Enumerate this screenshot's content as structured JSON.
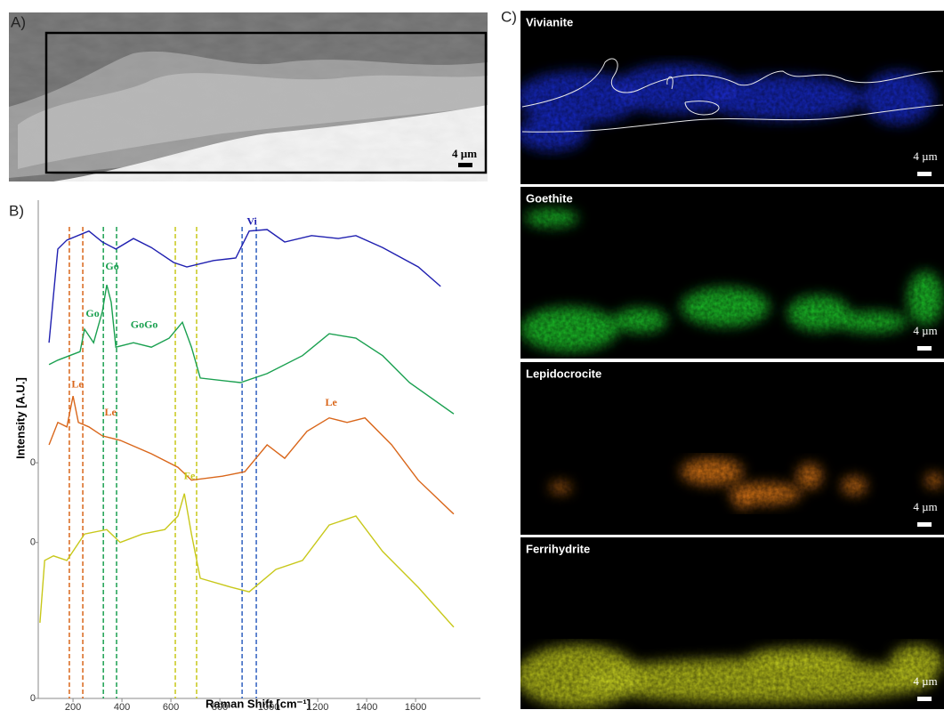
{
  "panel_a": {
    "label": "A)",
    "scale_bar": "4 µm"
  },
  "chart_data": {
    "type": "line",
    "label": "B)",
    "xlabel": "Raman Shift [cm⁻¹]",
    "ylabel": "Intensity [A.U.]",
    "xlim": [
      58,
      1865
    ],
    "xticks": [
      200,
      400,
      600,
      800,
      1000,
      1200,
      1400,
      1600
    ],
    "ylim": [
      0,
      100
    ],
    "yticks": [
      0,
      {
        "value": 31.3,
        "label": "0"
      },
      {
        "value": 47.3,
        "label": "0"
      }
    ],
    "series": [
      {
        "color": "#1f1fb0",
        "x": [
          102,
          138,
          175,
          265,
          320,
          375,
          447,
          520,
          611,
          665,
          775,
          865,
          920,
          993,
          1065,
          1175,
          1284,
          1356,
          1465,
          1611,
          1702
        ],
        "values": [
          71.4,
          90.2,
          92.0,
          93.8,
          91.6,
          90.2,
          92.3,
          90.5,
          87.5,
          86.6,
          87.9,
          88.4,
          93.8,
          94.1,
          91.6,
          92.9,
          92.3,
          92.9,
          90.5,
          86.6,
          82.7
        ]
      },
      {
        "color": "#1aa050",
        "x": [
          102,
          138,
          229,
          247,
          284,
          320,
          338,
          356,
          375,
          447,
          520,
          593,
          647,
          684,
          720,
          884,
          993,
          1138,
          1247,
          1356,
          1465,
          1575,
          1756
        ],
        "values": [
          67.0,
          67.9,
          69.6,
          74.1,
          71.4,
          77.7,
          83.0,
          79.5,
          70.5,
          71.4,
          70.5,
          72.3,
          75.5,
          70.5,
          64.3,
          63.4,
          65.2,
          68.8,
          73.2,
          72.3,
          68.8,
          63.4,
          57.1
        ]
      },
      {
        "color": "#d9661a",
        "x": [
          102,
          138,
          175,
          200,
          222,
          265,
          320,
          393,
          520,
          629,
          684,
          811,
          902,
          993,
          1065,
          1156,
          1247,
          1320,
          1393,
          1502,
          1611,
          1756
        ],
        "values": [
          50.9,
          55.4,
          54.5,
          60.7,
          55.4,
          54.5,
          52.7,
          51.8,
          49.1,
          46.4,
          43.8,
          44.6,
          45.5,
          50.9,
          48.2,
          53.6,
          56.3,
          55.4,
          56.3,
          50.9,
          43.8,
          37.0
        ]
      },
      {
        "color": "#c8c81a",
        "x": [
          65,
          84,
          120,
          175,
          247,
          338,
          393,
          484,
          575,
          629,
          655,
          684,
          720,
          847,
          920,
          1029,
          1138,
          1247,
          1356,
          1465,
          1611,
          1756
        ],
        "values": [
          15.2,
          27.7,
          28.6,
          27.7,
          33.0,
          33.9,
          31.3,
          33.0,
          33.9,
          36.6,
          41.1,
          33.0,
          24.1,
          22.3,
          21.4,
          25.9,
          27.7,
          34.8,
          36.6,
          29.5,
          22.3,
          14.3
        ]
      }
    ],
    "reference_lines": [
      {
        "x": 185,
        "color": "#d9661a"
      },
      {
        "x": 240,
        "color": "#d9661a"
      },
      {
        "x": 324,
        "color": "#1aa050"
      },
      {
        "x": 378,
        "color": "#1aa050"
      },
      {
        "x": 618,
        "color": "#c8c81a"
      },
      {
        "x": 705,
        "color": "#c8c81a"
      },
      {
        "x": 891,
        "color": "#3060c0"
      },
      {
        "x": 949,
        "color": "#3060c0"
      }
    ],
    "annotations": [
      {
        "text": "Vi",
        "x": 931,
        "y": 94.5,
        "color": "#1f1fb0"
      },
      {
        "text": "Go",
        "x": 360,
        "y": 85.5,
        "color": "#1aa050"
      },
      {
        "text": "Go",
        "x": 280,
        "y": 76.0,
        "color": "#1aa050"
      },
      {
        "text": "GoGo",
        "x": 491,
        "y": 73.8,
        "color": "#1aa050"
      },
      {
        "text": "Le",
        "x": 218,
        "y": 61.8,
        "color": "#d9661a"
      },
      {
        "text": "Le",
        "x": 353,
        "y": 56.2,
        "color": "#d9661a"
      },
      {
        "text": "Le",
        "x": 1255,
        "y": 58.2,
        "color": "#d9661a"
      },
      {
        "text": "Fe",
        "x": 676,
        "y": 43.4,
        "color": "#c8c81a"
      }
    ]
  },
  "panel_c": {
    "label": "C)",
    "maps": [
      {
        "title": "Vivianite",
        "scale_bar": "4 µm",
        "color": "#1a2ee0"
      },
      {
        "title": "Goethite",
        "scale_bar": "4 µm",
        "color": "#22e030"
      },
      {
        "title": "Lepidocrocite",
        "scale_bar": "4 µm",
        "color": "#ff8a1a"
      },
      {
        "title": "Ferrihydrite",
        "scale_bar": "4 µm",
        "color": "#d6e020"
      }
    ]
  }
}
